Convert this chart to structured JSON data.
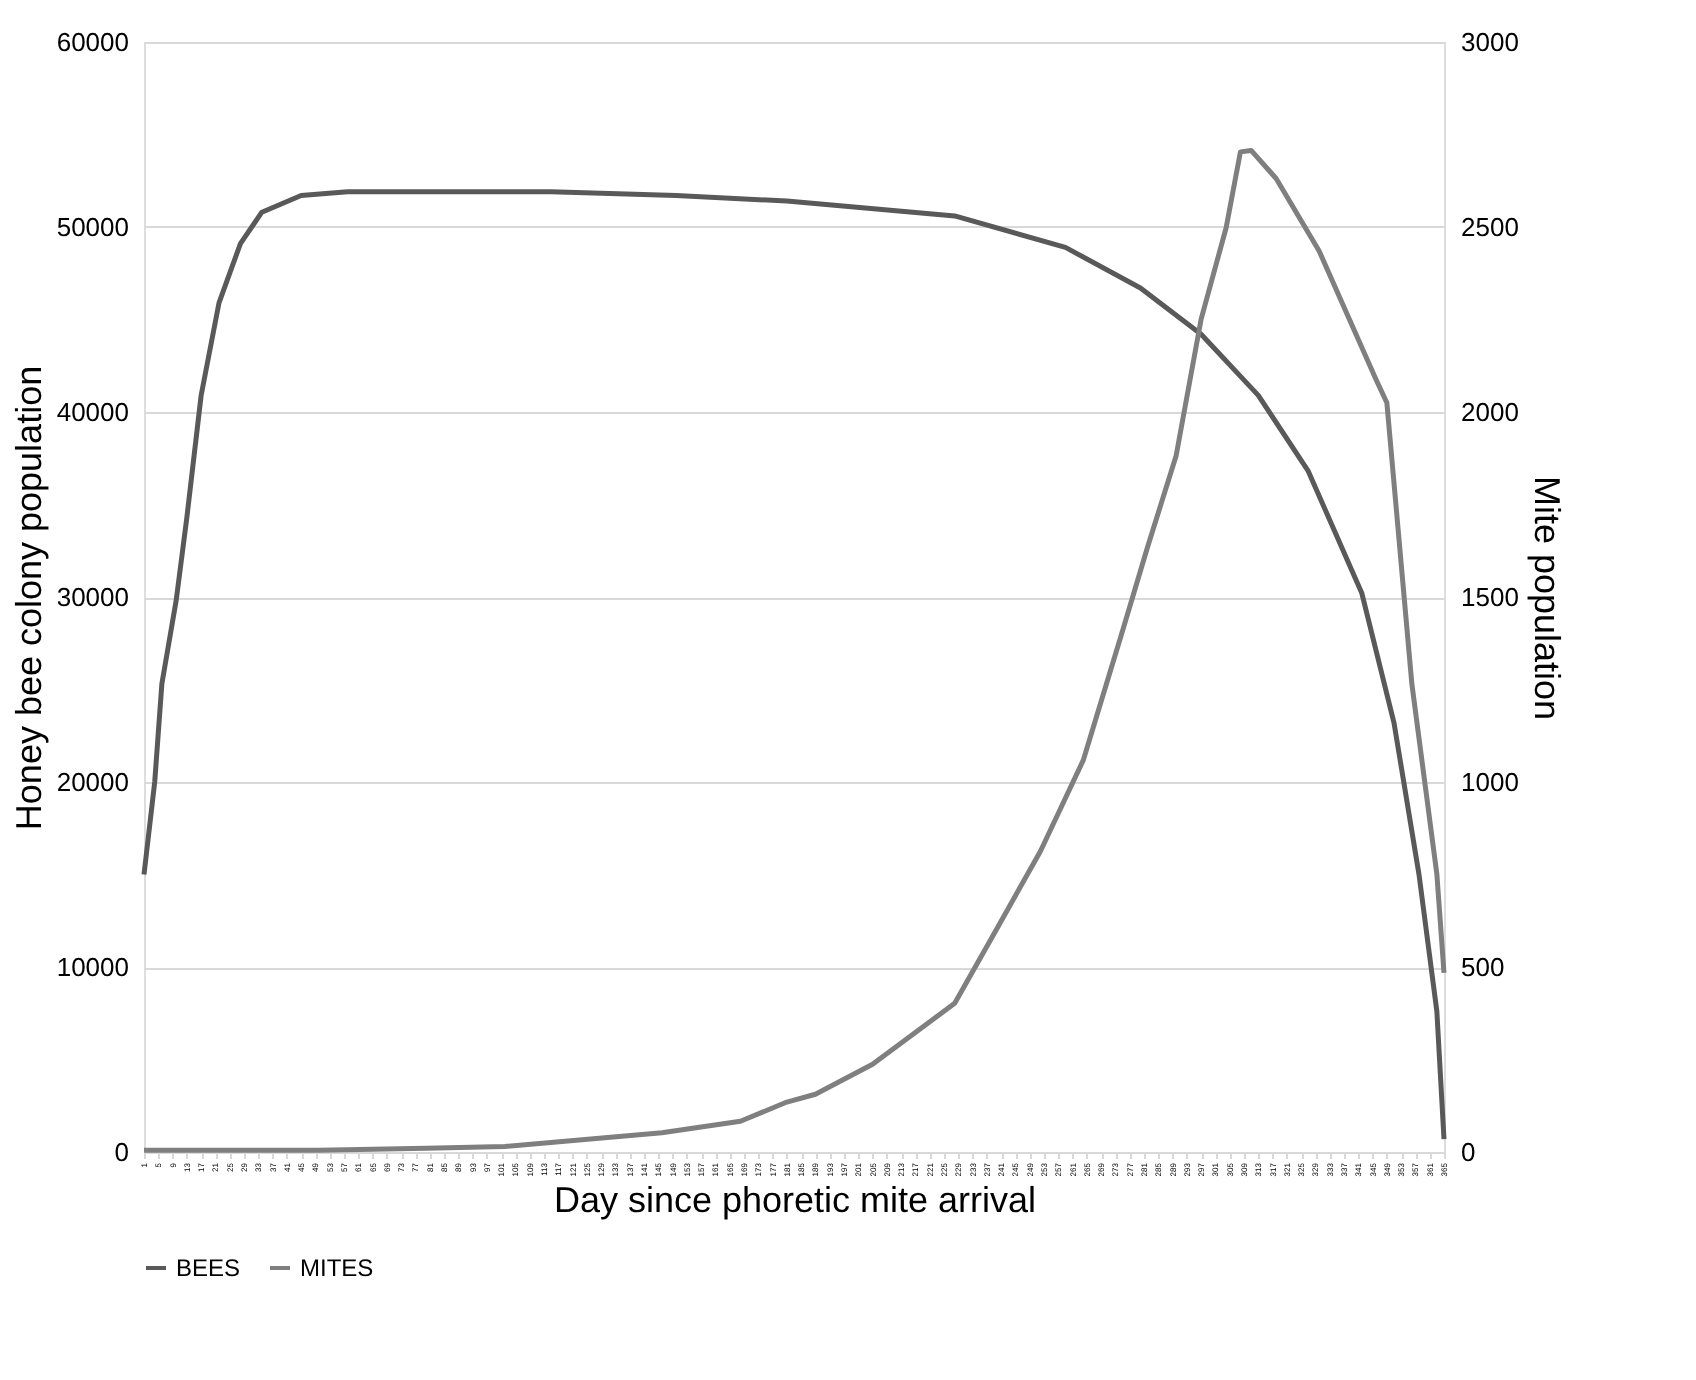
{
  "chart_data": {
    "type": "line",
    "xlabel": "Day since phoretic mite arrival",
    "ylabel": "Honey bee colony population",
    "y2label": "Mite population",
    "xlim": [
      1,
      365
    ],
    "xticks": [
      1,
      5,
      9,
      13,
      17,
      21,
      25,
      29,
      33,
      37,
      41,
      45,
      49,
      53,
      57,
      61,
      65,
      69,
      73,
      77,
      81,
      85,
      89,
      93,
      97,
      101,
      105,
      109,
      113,
      117,
      121,
      125,
      129,
      133,
      137,
      141,
      145,
      149,
      153,
      157,
      161,
      165,
      169,
      173,
      177,
      181,
      185,
      189,
      193,
      197,
      201,
      205,
      209,
      213,
      217,
      221,
      225,
      229,
      233,
      237,
      241,
      245,
      249,
      253,
      257,
      261,
      265,
      269,
      273,
      277,
      281,
      285,
      289,
      293,
      297,
      301,
      305,
      309,
      313,
      317,
      321,
      325,
      329,
      333,
      337,
      341,
      345,
      349,
      353,
      357,
      361,
      365
    ],
    "ylim": [
      0,
      60000
    ],
    "yticks": [
      0,
      10000,
      20000,
      30000,
      40000,
      50000,
      60000
    ],
    "y2lim": [
      0,
      3000
    ],
    "y2ticks": [
      0,
      500,
      1000,
      1500,
      2000,
      2500,
      3000
    ],
    "grid": "y",
    "legend": "bottom",
    "series": [
      {
        "name": "BEES",
        "color": "#595959",
        "axis": "y",
        "x": [
          1,
          4,
          6,
          10,
          13,
          17,
          22,
          28,
          34,
          45,
          58,
          115,
          150,
          181,
          228,
          259,
          280,
          297,
          313,
          327,
          342,
          351,
          358,
          363,
          365
        ],
        "values": [
          15000,
          20000,
          25300,
          29800,
          34300,
          40900,
          45900,
          49100,
          50800,
          51700,
          51900,
          51900,
          51700,
          51400,
          50600,
          48900,
          46700,
          44200,
          40900,
          36800,
          30200,
          23200,
          15000,
          7600,
          700
        ]
      },
      {
        "name": "MITES",
        "color": "#7f7f7f",
        "axis": "y2",
        "x": [
          1,
          50,
          80,
          102,
          146,
          168,
          181,
          189,
          205,
          228,
          240,
          252,
          264,
          275,
          282,
          290,
          297,
          304,
          308,
          311,
          318,
          330,
          346,
          349,
          356,
          363,
          365
        ],
        "values": [
          5,
          5,
          10,
          15,
          52,
          83,
          135,
          156,
          237,
          402,
          607,
          813,
          1059,
          1409,
          1635,
          1882,
          2251,
          2498,
          2703,
          2707,
          2631,
          2436,
          2087,
          2025,
          1265,
          751,
          484
        ]
      }
    ]
  }
}
